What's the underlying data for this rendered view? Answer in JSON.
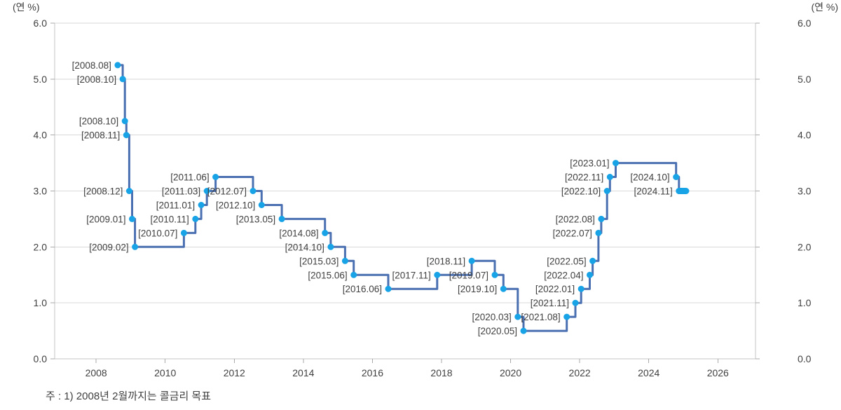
{
  "chart_data": {
    "type": "line",
    "subtype": "step",
    "title": "",
    "unit_label_left": "(연 %)",
    "unit_label_right": "(연 %)",
    "note": "주 : 1) 2008년 2월까지는 콜금리 목표",
    "grid": "horizontal",
    "legend": "none",
    "ylim": [
      0.0,
      6.0
    ],
    "xlim": [
      2006.8,
      2027.09
    ],
    "ytick_values": [
      6.0,
      5.0,
      4.0,
      3.0,
      2.0,
      1.0,
      0.0
    ],
    "ytick_labels": [
      "6.0",
      "5.0",
      "4.0",
      "3.0",
      "2.0",
      "1.0",
      "0.0"
    ],
    "xtick_values": [
      2008,
      2010,
      2012,
      2014,
      2016,
      2018,
      2020,
      2022,
      2024,
      2026
    ],
    "xtick_labels": [
      "2008",
      "2010",
      "2012",
      "2014",
      "2016",
      "2018",
      "2020",
      "2022",
      "2024",
      "2026"
    ],
    "colors": {
      "line": "#4b70b2",
      "marker": "#18a3e6",
      "grid": "#d9d9d9",
      "axis": "#c4c4c4",
      "tick": "#a9a9a9",
      "text": "#3f3f3f"
    },
    "tail_end_x": 2025.08,
    "points": [
      {
        "label": "[2008.08]",
        "x": 2008.625,
        "value": 5.25
      },
      {
        "label": "[2008.10]",
        "x": 2008.77,
        "value": 5.0
      },
      {
        "label": "[2008.10]",
        "x": 2008.833,
        "value": 4.25
      },
      {
        "label": "[2008.11]",
        "x": 2008.875,
        "value": 4.0
      },
      {
        "label": "[2008.12]",
        "x": 2008.958,
        "value": 3.0
      },
      {
        "label": "[2009.01]",
        "x": 2009.042,
        "value": 2.5
      },
      {
        "label": "[2009.02]",
        "x": 2009.125,
        "value": 2.0
      },
      {
        "label": "[2010.07]",
        "x": 2010.542,
        "value": 2.25
      },
      {
        "label": "[2010.11]",
        "x": 2010.875,
        "value": 2.5
      },
      {
        "label": "[2011.01]",
        "x": 2011.042,
        "value": 2.75
      },
      {
        "label": "[2011.03]",
        "x": 2011.208,
        "value": 3.0
      },
      {
        "label": "[2011.06]",
        "x": 2011.458,
        "value": 3.25
      },
      {
        "label": "[2012.07]",
        "x": 2012.542,
        "value": 3.0
      },
      {
        "label": "[2012.10]",
        "x": 2012.792,
        "value": 2.75
      },
      {
        "label": "[2013.05]",
        "x": 2013.375,
        "value": 2.5
      },
      {
        "label": "[2014.08]",
        "x": 2014.625,
        "value": 2.25
      },
      {
        "label": "[2014.10]",
        "x": 2014.792,
        "value": 2.0
      },
      {
        "label": "[2015.03]",
        "x": 2015.208,
        "value": 1.75
      },
      {
        "label": "[2015.06]",
        "x": 2015.458,
        "value": 1.5
      },
      {
        "label": "[2016.06]",
        "x": 2016.458,
        "value": 1.25
      },
      {
        "label": "[2017.11]",
        "x": 2017.875,
        "value": 1.5
      },
      {
        "label": "[2018.11]",
        "x": 2018.875,
        "value": 1.75
      },
      {
        "label": "[2019.07]",
        "x": 2019.542,
        "value": 1.5
      },
      {
        "label": "[2019.10]",
        "x": 2019.792,
        "value": 1.25
      },
      {
        "label": "[2020.03]",
        "x": 2020.208,
        "value": 0.75
      },
      {
        "label": "[2020.05]",
        "x": 2020.375,
        "value": 0.5
      },
      {
        "label": "[2021.08]",
        "x": 2021.625,
        "value": 0.75
      },
      {
        "label": "[2021.11]",
        "x": 2021.875,
        "value": 1.0
      },
      {
        "label": "[2022.01]",
        "x": 2022.042,
        "value": 1.25
      },
      {
        "label": "[2022.04]",
        "x": 2022.292,
        "value": 1.5
      },
      {
        "label": "[2022.05]",
        "x": 2022.375,
        "value": 1.75
      },
      {
        "label": "[2022.07]",
        "x": 2022.542,
        "value": 2.25
      },
      {
        "label": "[2022.08]",
        "x": 2022.625,
        "value": 2.5
      },
      {
        "label": "[2022.10]",
        "x": 2022.792,
        "value": 3.0
      },
      {
        "label": "[2022.11]",
        "x": 2022.875,
        "value": 3.25
      },
      {
        "label": "[2023.01]",
        "x": 2023.042,
        "value": 3.5
      },
      {
        "label": "[2024.10]",
        "x": 2024.792,
        "value": 3.25
      },
      {
        "label": "[2024.11]",
        "x": 2024.875,
        "value": 3.0
      }
    ]
  }
}
